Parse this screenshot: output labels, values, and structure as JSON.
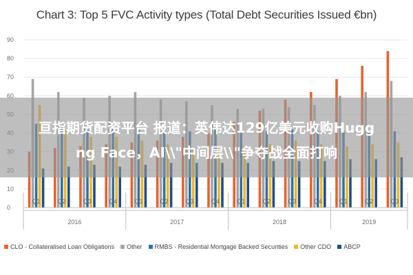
{
  "overlay": {
    "line1": "亘指期货配资平台 报道：英伟达129亿美元收购Hugg",
    "line2": "ng Face，AI\\\\\"中间层\\\\\"争夺战全面打响"
  },
  "colors": {
    "CLO": "#e8622c",
    "Other": "#a5a5a5",
    "RMBS": "#2f6fa8",
    "OtherCDO": "#f2b81f",
    "ABCP": "#1e4d8f",
    "grid": "#e6e6e6",
    "axis": "#bdbdbd",
    "text": "#6a6a6a"
  },
  "chart_data": {
    "type": "bar",
    "title": "Chart 3: Top 5 FVC Activity types (Total Debt Securities Issued €bn)",
    "xlabel": "",
    "ylabel": "",
    "ylim": [
      0,
      90
    ],
    "yticks": [
      0,
      10,
      20,
      30,
      40,
      50,
      60,
      70,
      80,
      90
    ],
    "grid": true,
    "legend": "bottom",
    "categories": [
      "Q1",
      "Q2",
      "Q3",
      "Q4",
      "Q1",
      "Q2",
      "Q3",
      "Q4",
      "Q1",
      "Q2",
      "Q3",
      "Q4",
      "Q1",
      "Q2",
      "Q3"
    ],
    "groups": [
      {
        "label": "2016",
        "count": 4
      },
      {
        "label": "2017",
        "count": 4
      },
      {
        "label": "2018",
        "count": 4
      },
      {
        "label": "2019",
        "count": 3
      }
    ],
    "series": [
      {
        "name": "CLO - Collateralised Loan Obligations",
        "key": "CLO",
        "values": [
          30,
          32,
          33,
          34,
          35,
          36,
          38,
          40,
          46,
          52,
          58,
          62,
          69,
          76,
          84
        ]
      },
      {
        "name": "Other",
        "key": "Other",
        "values": [
          69,
          62,
          59,
          60,
          62,
          58,
          57,
          55,
          53,
          53,
          54,
          55,
          60,
          62,
          68
        ]
      },
      {
        "name": "RMBS - Residential Mortgage Backed Securities",
        "key": "RMBS",
        "values": [
          45,
          44,
          42,
          43,
          42,
          41,
          41,
          42,
          42,
          41,
          42,
          41,
          41,
          40,
          41
        ]
      },
      {
        "name": "Other CDO",
        "key": "OtherCDO",
        "values": [
          55,
          42,
          38,
          38,
          36,
          34,
          32,
          32,
          33,
          34,
          36,
          34,
          33,
          34,
          35
        ]
      },
      {
        "name": "ABCP",
        "key": "ABCP",
        "values": [
          21,
          22,
          23,
          22,
          23,
          24,
          24,
          24,
          24,
          25,
          25,
          25,
          26,
          26,
          27
        ]
      }
    ]
  }
}
